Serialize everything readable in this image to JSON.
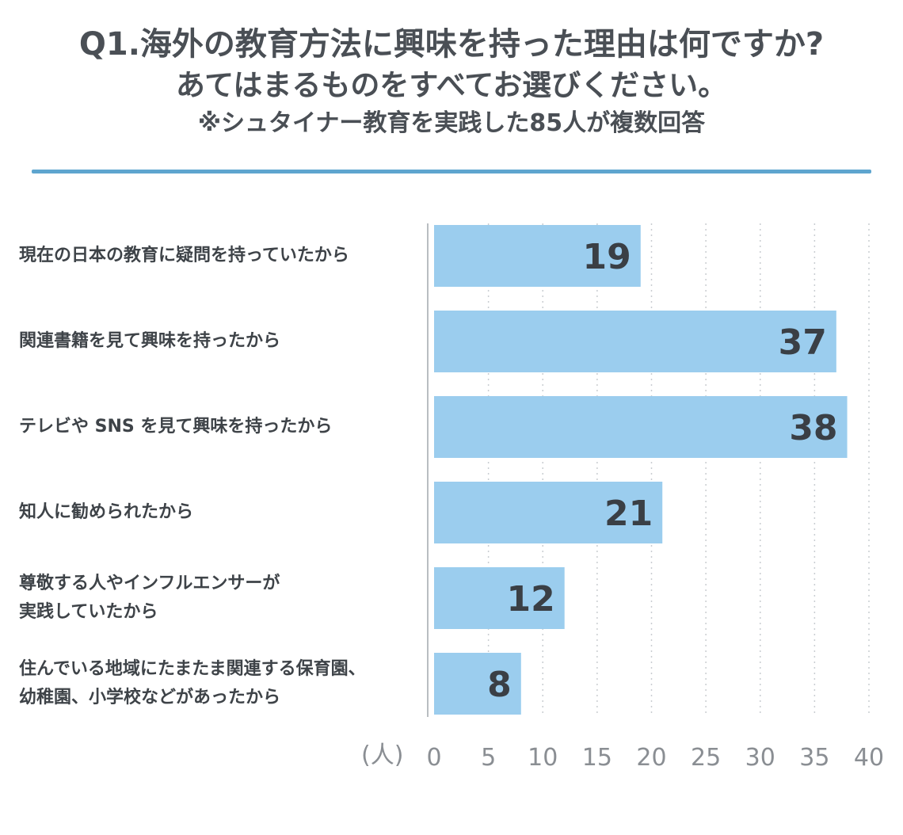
{
  "header": {
    "title_line1": "Q1.海外の教育方法に興味を持った理由は何ですか?",
    "title_line2": "あてはまるものをすべてお選びください。",
    "subtitle": "※シュタイナー教育を実践した85人が複数回答"
  },
  "chart_data": {
    "type": "bar",
    "orientation": "horizontal",
    "categories": [
      "現在の日本の教育に疑問を持っていたから",
      "関連書籍を見て興味を持ったから",
      "テレビや SNS を見て興味を持ったから",
      "知人に勧められたから",
      "尊敬する人やインフルエンサーが実践していたから",
      "住んでいる地域にたまたま関連する保育園、幼稚園、小学校などがあったから"
    ],
    "category_display_lines": [
      [
        "現在の日本の教育に疑問を持っていたから"
      ],
      [
        "関連書籍を見て興味を持ったから"
      ],
      [
        "テレビや SNS を見て興味を持ったから"
      ],
      [
        "知人に勧められたから"
      ],
      [
        "尊敬する人やインフルエンサーが",
        "実践していたから"
      ],
      [
        "住んでいる地域にたまたま関連する保育園、",
        "幼稚園、小学校などがあったから"
      ]
    ],
    "values": [
      19,
      37,
      38,
      21,
      12,
      8
    ],
    "xlim": [
      0,
      40
    ],
    "xticks": [
      0,
      5,
      10,
      15,
      20,
      25,
      30,
      35,
      40
    ],
    "x_unit": "(人)",
    "grid": "vertical dotted",
    "bar_color": "#9bcdee",
    "label_color": "#3a3f45"
  }
}
